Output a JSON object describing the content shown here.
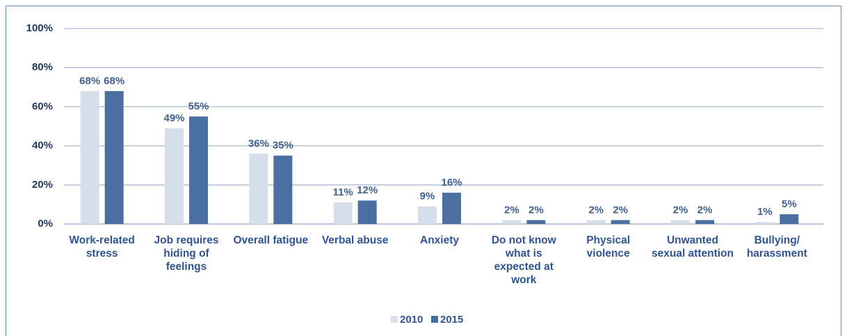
{
  "chart_data": {
    "type": "bar",
    "categories": [
      "Work-related stress",
      "Job requires hiding of feelings",
      "Overall fatigue",
      "Verbal abuse",
      "Anxiety",
      "Do not know what is expected at work",
      "Physical violence",
      "Unwanted sexual attention",
      "Bullying/ harassment"
    ],
    "series": [
      {
        "name": "2010",
        "color": "#d5dfeb",
        "values": [
          68,
          49,
          36,
          11,
          9,
          2,
          2,
          2,
          1
        ],
        "value_labels": [
          "68%",
          "49%",
          "36%",
          "11%",
          "9%",
          "2%",
          "2%",
          "2%",
          "1%"
        ]
      },
      {
        "name": "2015",
        "color": "#4a6fa1",
        "values": [
          68,
          55,
          35,
          12,
          16,
          2,
          2,
          2,
          5
        ],
        "value_labels": [
          "68%",
          "55%",
          "35%",
          "12%",
          "16%",
          "2%",
          "2%",
          "2%",
          "5%"
        ]
      }
    ],
    "ylim": [
      0,
      100
    ],
    "yticks": [
      {
        "value": 0,
        "label": "0%"
      },
      {
        "value": 20,
        "label": "20%"
      },
      {
        "value": 40,
        "label": "40%"
      },
      {
        "value": 60,
        "label": "60%"
      },
      {
        "value": 80,
        "label": "80%"
      },
      {
        "value": 100,
        "label": "100%"
      }
    ],
    "grid": true,
    "legend": "bottom"
  }
}
